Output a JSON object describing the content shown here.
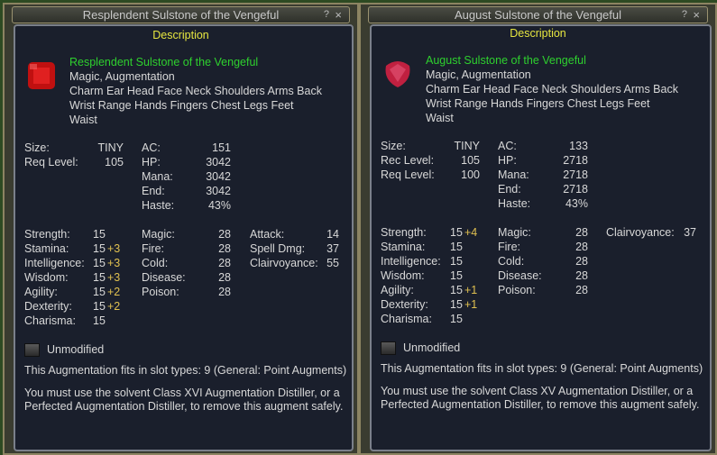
{
  "panels": [
    {
      "title": "Resplendent Sulstone of the Vengeful",
      "description_label": "Description",
      "item_name": "Resplendent Sulstone of the Vengeful",
      "type": "Magic, Augmentation",
      "slots_lines": [
        "Charm Ear Head Face Neck Shoulders Arms Back",
        "Wrist Range Hands Fingers Chest Legs Feet",
        "Waist"
      ],
      "info": [
        [
          "Size:",
          "TINY"
        ],
        [
          "Req Level:",
          "105"
        ]
      ],
      "combat": [
        [
          "AC:",
          "151"
        ],
        [
          "HP:",
          "3042"
        ],
        [
          "Mana:",
          "3042"
        ],
        [
          "End:",
          "3042"
        ],
        [
          "Haste:",
          "43%"
        ]
      ],
      "stats": [
        [
          "Strength:",
          "15",
          ""
        ],
        [
          "Stamina:",
          "15",
          "+3"
        ],
        [
          "Intelligence:",
          "15",
          "+3"
        ],
        [
          "Wisdom:",
          "15",
          "+3"
        ],
        [
          "Agility:",
          "15",
          "+2"
        ],
        [
          "Dexterity:",
          "15",
          "+2"
        ],
        [
          "Charisma:",
          "15",
          ""
        ]
      ],
      "resists": [
        [
          "Magic:",
          "28"
        ],
        [
          "Fire:",
          "28"
        ],
        [
          "Cold:",
          "28"
        ],
        [
          "Disease:",
          "28"
        ],
        [
          "Poison:",
          "28"
        ]
      ],
      "extra": [
        [
          "Attack:",
          "14"
        ],
        [
          "Spell Dmg:",
          "37"
        ],
        [
          "Clairvoyance:",
          "55"
        ]
      ],
      "unmodified": "Unmodified",
      "slot_types": "This Augmentation fits in slot types: 9 (General: Point Augments)",
      "distiller": [
        "You must use the solvent Class XVI Augmentation Distiller, or a",
        "Perfected Augmentation Distiller, to remove this augment safely."
      ],
      "gem": "square-ruby-icon"
    },
    {
      "title": "August Sulstone of the Vengeful",
      "description_label": "Description",
      "item_name": "August Sulstone of the Vengeful",
      "type": "Magic, Augmentation",
      "slots_lines": [
        "Charm Ear Head Face Neck Shoulders Arms Back",
        "Wrist Range Hands Fingers Chest Legs Feet",
        "Waist"
      ],
      "info": [
        [
          "Size:",
          "TINY"
        ],
        [
          "Rec Level:",
          "105"
        ],
        [
          "Req Level:",
          "100"
        ]
      ],
      "combat": [
        [
          "AC:",
          "133"
        ],
        [
          "HP:",
          "2718"
        ],
        [
          "Mana:",
          "2718"
        ],
        [
          "End:",
          "2718"
        ],
        [
          "Haste:",
          "43%"
        ]
      ],
      "stats": [
        [
          "Strength:",
          "15",
          "+4"
        ],
        [
          "Stamina:",
          "15",
          ""
        ],
        [
          "Intelligence:",
          "15",
          ""
        ],
        [
          "Wisdom:",
          "15",
          ""
        ],
        [
          "Agility:",
          "15",
          "+1"
        ],
        [
          "Dexterity:",
          "15",
          "+1"
        ],
        [
          "Charisma:",
          "15",
          ""
        ]
      ],
      "resists": [
        [
          "Magic:",
          "28"
        ],
        [
          "Fire:",
          "28"
        ],
        [
          "Cold:",
          "28"
        ],
        [
          "Disease:",
          "28"
        ],
        [
          "Poison:",
          "28"
        ]
      ],
      "extra": [
        [
          "Clairvoyance:",
          "37"
        ]
      ],
      "unmodified": "Unmodified",
      "slot_types": "This Augmentation fits in slot types: 9 (General: Point Augments)",
      "distiller": [
        "You must use the solvent Class XV Augmentation Distiller, or a",
        "Perfected Augmentation Distiller, to remove this augment safely."
      ],
      "gem": "triangle-ruby-icon"
    }
  ],
  "buttons": {
    "help": "?",
    "close": "×"
  }
}
